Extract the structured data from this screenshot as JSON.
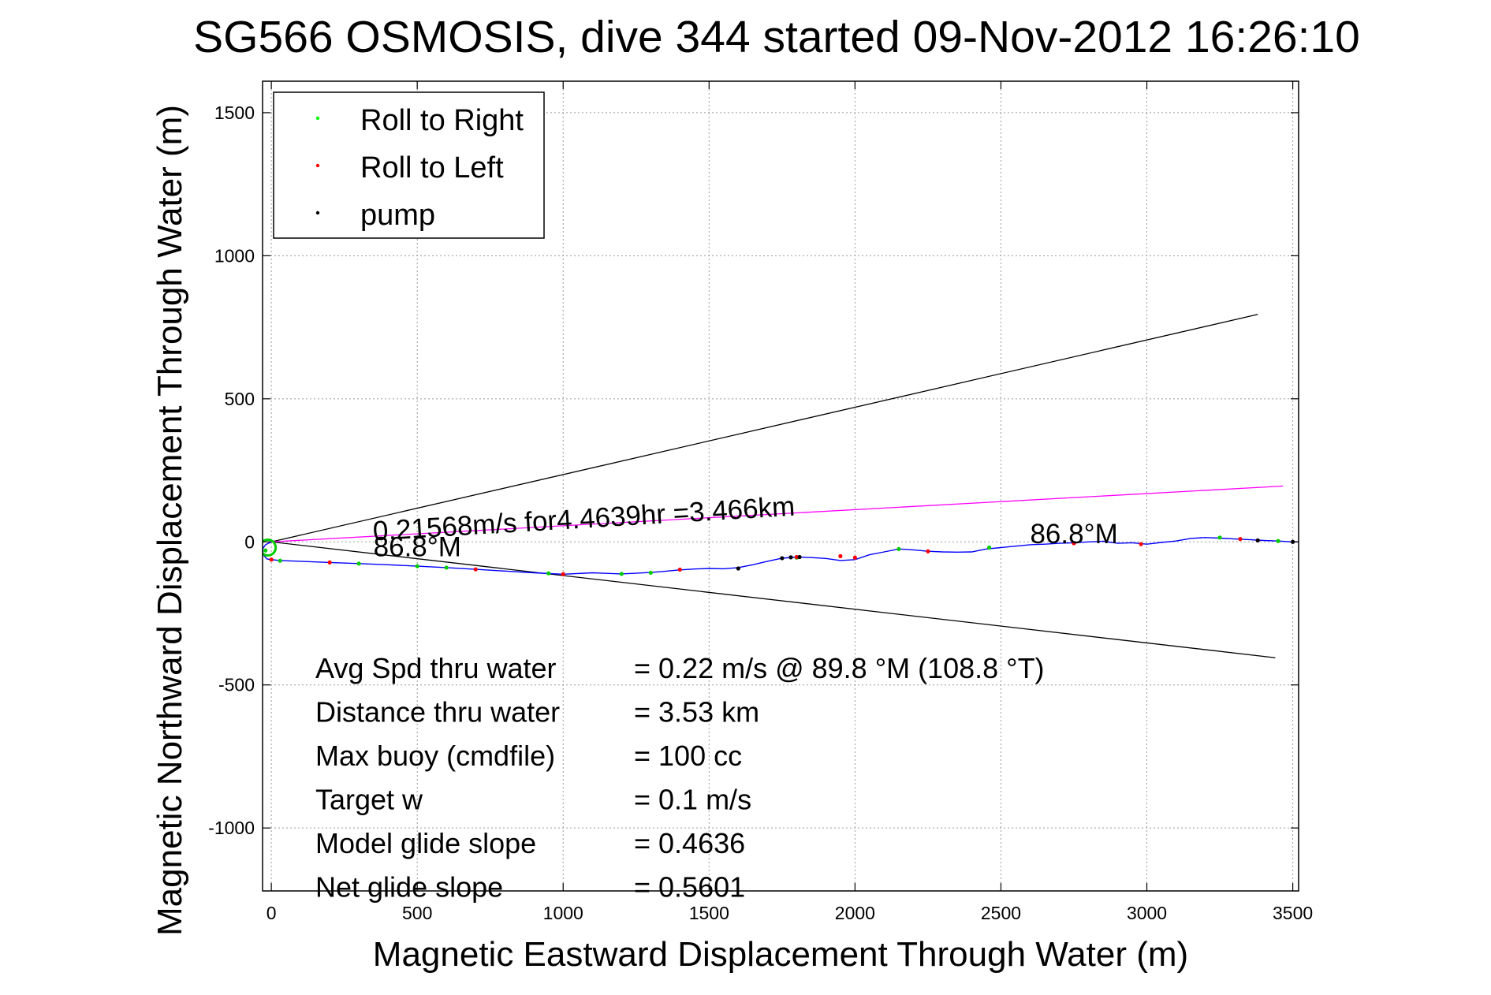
{
  "chart_data": {
    "type": "line",
    "title": "SG566 OSMOSIS, dive 344 started 09-Nov-2012 16:26:10",
    "xlabel": "Magnetic Eastward Displacement Through Water (m)",
    "ylabel": "Magnetic Northward Displacement Through Water (m)",
    "xlim": [
      -30,
      3520
    ],
    "ylim": [
      -1220,
      1610
    ],
    "xticks": [
      0,
      500,
      1000,
      1500,
      2000,
      2500,
      3000,
      3500
    ],
    "yticks": [
      -1000,
      -500,
      0,
      500,
      1000,
      1500
    ],
    "grid": true,
    "legend": {
      "placement": "top-left",
      "entries": [
        {
          "label": "Roll to Right",
          "color": "#00ff00"
        },
        {
          "label": "Roll to Left",
          "color": "#ff0000"
        },
        {
          "label": "pump",
          "color": "#000000"
        }
      ]
    },
    "track": {
      "name": "Dive track",
      "color": "#0000ff",
      "x": [
        0,
        -20,
        -30,
        -28,
        -15,
        0,
        30,
        100,
        200,
        300,
        400,
        500,
        600,
        700,
        800,
        900,
        1000,
        1100,
        1200,
        1300,
        1350,
        1400,
        1450,
        1500,
        1550,
        1600,
        1650,
        1700,
        1750,
        1800,
        1850,
        1900,
        1950,
        2000,
        2050,
        2100,
        2150,
        2200,
        2250,
        2300,
        2350,
        2400,
        2450,
        2500,
        2550,
        2600,
        2650,
        2700,
        2750,
        2800,
        2850,
        2900,
        2950,
        3000,
        3050,
        3100,
        3150,
        3200,
        3250,
        3300,
        3350,
        3400,
        3450,
        3500,
        3520
      ],
      "y": [
        0,
        -10,
        -25,
        -45,
        -60,
        -62,
        -65,
        -68,
        -72,
        -76,
        -80,
        -85,
        -90,
        -96,
        -102,
        -108,
        -113,
        -108,
        -112,
        -107,
        -103,
        -98,
        -95,
        -93,
        -94,
        -90,
        -80,
        -68,
        -57,
        -53,
        -55,
        -58,
        -65,
        -62,
        -45,
        -35,
        -25,
        -28,
        -33,
        -35,
        -36,
        -35,
        -25,
        -20,
        -15,
        -10,
        -8,
        -5,
        -3,
        0,
        2,
        -5,
        -3,
        -8,
        -2,
        3,
        12,
        15,
        13,
        10,
        8,
        5,
        3,
        0,
        0
      ]
    },
    "markers": {
      "roll_right": {
        "x": [
          -20,
          30,
          300,
          500,
          600,
          950,
          1200,
          1300,
          1800,
          2150,
          2460,
          3250,
          3450
        ],
        "y": [
          -30,
          -66,
          -76,
          -85,
          -90,
          -110,
          -112,
          -108,
          -55,
          -25,
          -20,
          15,
          3
        ]
      },
      "roll_left": {
        "x": [
          0,
          200,
          700,
          1000,
          1400,
          1800,
          1950,
          2000,
          2250,
          2750,
          2980,
          3320,
          3380
        ],
        "y": [
          -62,
          -72,
          -96,
          -113,
          -97,
          -53,
          -50,
          -55,
          -33,
          -5,
          -8,
          10,
          5
        ]
      },
      "pump": {
        "x": [
          1600,
          1750,
          1780,
          1810,
          3380,
          3500
        ],
        "y": [
          -93,
          -57,
          -54,
          -53,
          5,
          0
        ]
      }
    },
    "lines": [
      {
        "name": "Upper bound",
        "color": "#000000",
        "x": [
          0,
          3380
        ],
        "y": [
          0,
          795
        ]
      },
      {
        "name": "Lower bound",
        "color": "#000000",
        "x": [
          0,
          3440
        ],
        "y": [
          0,
          -405
        ]
      },
      {
        "name": "Depth-avg current",
        "color": "#ff00ff",
        "x": [
          0,
          3466
        ],
        "y": [
          0,
          195
        ]
      }
    ],
    "annotations": [
      {
        "text": "0.21568m/s for4.4639hr =3.466km",
        "x": 350,
        "y": 5,
        "rotate": -3.4
      },
      {
        "text": "86.8°M",
        "x": 350,
        "y": -50,
        "rotate": 0
      },
      {
        "text": "86.8°M",
        "x": 2600,
        "y": -5,
        "rotate": 0
      }
    ],
    "stats": [
      {
        "label": "Avg Spd thru water",
        "value": "=  0.22 m/s @  89.8 °M (108.8 °T)"
      },
      {
        "label": "Distance thru water",
        "value": "=  3.53 km"
      },
      {
        "label": "Max buoy (cmdfile)",
        "value": "= 100 cc"
      },
      {
        "label": "Target w",
        "value": "= 0.1 m/s"
      },
      {
        "label": "Model glide slope",
        "value": "= 0.4636"
      },
      {
        "label": "Net glide slope",
        "value": "= 0.5601"
      }
    ]
  }
}
